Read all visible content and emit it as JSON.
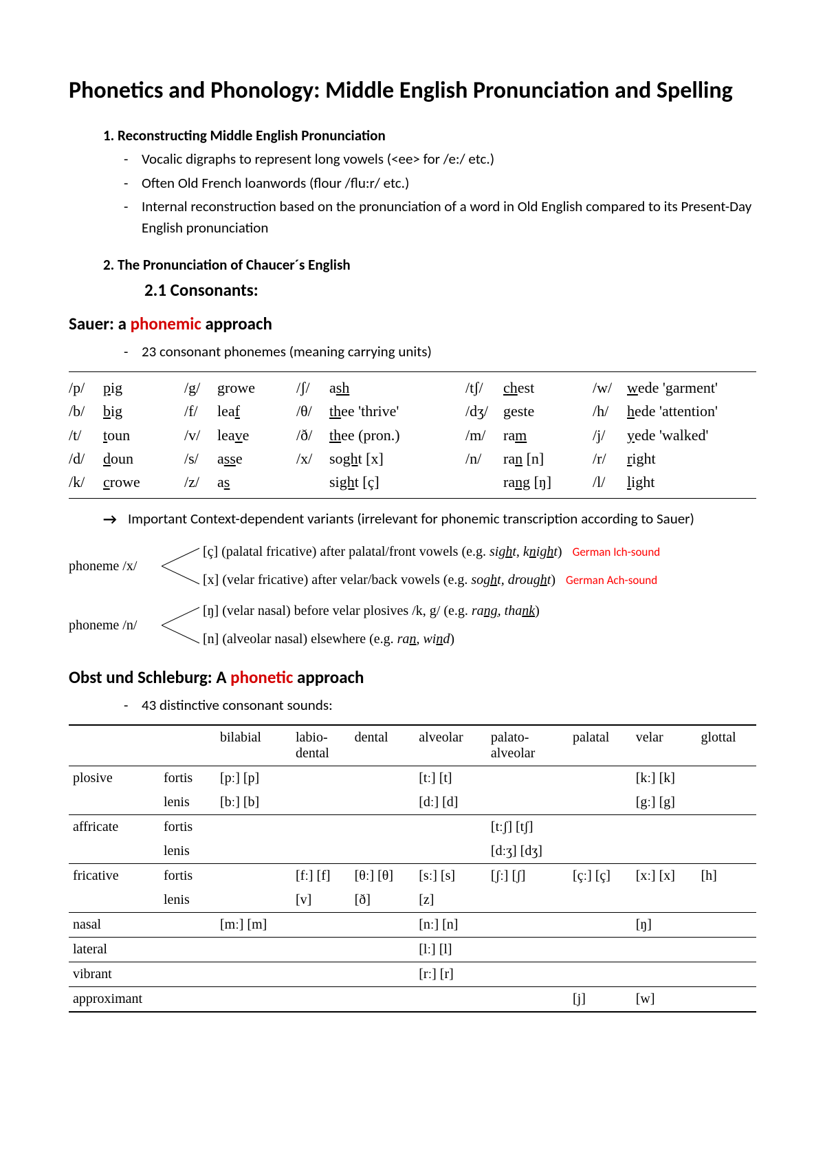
{
  "title": "Phonetics and Phonology: Middle English Pronunciation and Spelling",
  "section1": {
    "num": "1.",
    "heading": "Reconstructing Middle English Pronunciation",
    "bullets": [
      "Vocalic digraphs to represent long vowels (<ee> for /e:/ etc.)",
      "Often Old French loanwords (flour /flu:r/ etc.)",
      "Internal reconstruction based on the pronunciation of a word in Old English compared to its Present-Day English pronunciation"
    ]
  },
  "section2": {
    "num": "2.",
    "heading": "The Pronunciation of Chaucer´s English",
    "sub": "2.1 Consonants:"
  },
  "sauer": {
    "heading_pre": "Sauer: a ",
    "heading_red": "phonemic",
    "heading_post": " approach",
    "bullet": "23 consonant phonemes (meaning carrying units)"
  },
  "phon_rows": [
    [
      "/p/",
      "p",
      "ig",
      "/g/",
      "g",
      "rowe",
      "/ʃ/",
      "a",
      "sh",
      "",
      "/tʃ/",
      "ch",
      "est",
      "",
      "/w/",
      "w",
      "ede 'garment'"
    ],
    [
      "/b/",
      "b",
      "ig",
      "/f/",
      "lea",
      "f",
      "/θ/",
      "th",
      "ee 'thrive'",
      "",
      "/dʒ/",
      "g",
      "este",
      "",
      "/h/",
      "h",
      "ede 'attention'"
    ],
    [
      "/t/",
      "t",
      "oun",
      "/v/",
      "lea",
      "v",
      "e",
      "/ð/",
      "th",
      "ee (pron.)",
      "/m/",
      "ra",
      "m",
      "",
      "/j/",
      "y",
      "ede 'walked'"
    ],
    [
      "/d/",
      "d",
      "oun",
      "/s/",
      "a",
      "ss",
      "e",
      "/x/",
      "so",
      "gh",
      "t [x]",
      "/n/",
      "ra",
      "n",
      " [n]",
      "/r/",
      "r",
      "ight"
    ],
    [
      "/k/",
      "c",
      "rowe",
      "/z/",
      "a",
      "s",
      "",
      "",
      "si",
      "gh",
      "t [ç]",
      "",
      "ra",
      "ng",
      " [ŋ]",
      "/l/",
      "l",
      "ight"
    ]
  ],
  "arrow_note": "Important Context-dependent variants (irrelevant for phonemic transcription according to Sauer)",
  "allophones": [
    {
      "phoneme": "phoneme /x/",
      "branches": [
        {
          "text": "[ç] (palatal fricative) after palatal/front vowels (e.g. ",
          "it": "sight, knight",
          "suf": ")",
          "annot": "German Ich-sound"
        },
        {
          "text": "[x] (velar fricative) after velar/back vowels (e.g. ",
          "it": "soght, drought",
          "suf": ")",
          "annot": "German Ach-sound"
        }
      ]
    },
    {
      "phoneme": "phoneme /n/",
      "branches": [
        {
          "text": "[ŋ] (velar nasal) before velar plosives /k, g/ (e.g. ",
          "it": "rang, thank",
          "suf": ")",
          "annot": ""
        },
        {
          "text": "[n] (alveolar nasal) elsewhere (e.g. ",
          "it": "ran, wind",
          "suf": ")",
          "annot": ""
        }
      ]
    }
  ],
  "obst": {
    "heading_pre": "Obst und Schleburg: A ",
    "heading_red": "phonetic",
    "heading_post": " approach",
    "bullet": "43 distinctive consonant sounds:"
  },
  "cons_table": {
    "headers": [
      "",
      "",
      "bilabial",
      "labio-dental",
      "dental",
      "alveolar",
      "palato-alveolar",
      "palatal",
      "velar",
      "glottal"
    ],
    "rows": [
      {
        "label": "plosive",
        "sub": "fortis",
        "cells": [
          "[pː] [p]",
          "",
          "",
          "[tː] [t]",
          "",
          "",
          "[kː] [k]",
          ""
        ]
      },
      {
        "label": "",
        "sub": "lenis",
        "cells": [
          "[bː] [b]",
          "",
          "",
          "[dː] [d]",
          "",
          "",
          "[gː] [g]",
          ""
        ],
        "end": true
      },
      {
        "label": "affricate",
        "sub": "fortis",
        "cells": [
          "",
          "",
          "",
          "",
          "[tːʃ] [tʃ]",
          "",
          "",
          ""
        ]
      },
      {
        "label": "",
        "sub": "lenis",
        "cells": [
          "",
          "",
          "",
          "",
          "[dːʒ] [dʒ]",
          "",
          "",
          ""
        ],
        "end": true
      },
      {
        "label": "fricative",
        "sub": "fortis",
        "cells": [
          "",
          "[fː] [f]",
          "[θː] [θ]",
          "[sː] [s]",
          "[ʃː] [ʃ]",
          "[çː] [ç]",
          "[xː] [x]",
          "[h]"
        ]
      },
      {
        "label": "",
        "sub": "lenis",
        "cells": [
          "",
          "[v]",
          "[ð]",
          "[z]",
          "",
          "",
          "",
          ""
        ],
        "end": true
      },
      {
        "label": "nasal",
        "sub": "",
        "cells": [
          "[mː] [m]",
          "",
          "",
          "[nː] [n]",
          "",
          "",
          "[ŋ]",
          ""
        ],
        "end": true
      },
      {
        "label": "lateral",
        "sub": "",
        "cells": [
          "",
          "",
          "",
          "[lː] [l]",
          "",
          "",
          "",
          ""
        ],
        "end": true
      },
      {
        "label": "vibrant",
        "sub": "",
        "cells": [
          "",
          "",
          "",
          "[rː] [r]",
          "",
          "",
          "",
          ""
        ],
        "end": true
      },
      {
        "label": "approximant",
        "sub": "",
        "cells": [
          "",
          "",
          "",
          "",
          "",
          "[j]",
          "[w]",
          ""
        ],
        "last": true
      }
    ]
  }
}
